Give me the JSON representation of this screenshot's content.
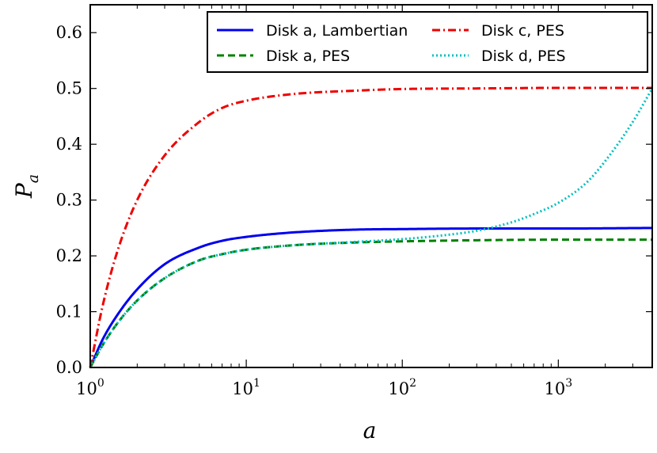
{
  "chart_data": {
    "type": "line",
    "title": "",
    "xlabel": "a",
    "ylabel_main": "P",
    "ylabel_sub": "a",
    "xscale": "log",
    "xlim": [
      1,
      4000
    ],
    "ylim": [
      0,
      0.65
    ],
    "x_ticks": [
      {
        "value": 1,
        "base": "10",
        "exp": "0"
      },
      {
        "value": 10,
        "base": "10",
        "exp": "1"
      },
      {
        "value": 100,
        "base": "10",
        "exp": "2"
      },
      {
        "value": 1000,
        "base": "10",
        "exp": "3"
      }
    ],
    "y_ticks": [
      {
        "value": 0.0,
        "label": "0.0"
      },
      {
        "value": 0.1,
        "label": "0.1"
      },
      {
        "value": 0.2,
        "label": "0.2"
      },
      {
        "value": 0.3,
        "label": "0.3"
      },
      {
        "value": 0.4,
        "label": "0.4"
      },
      {
        "value": 0.5,
        "label": "0.5"
      },
      {
        "value": 0.6,
        "label": "0.6"
      }
    ],
    "legend_position": "top-right",
    "series": [
      {
        "name": "Disk a, Lambertian",
        "color": "#0000ee",
        "dash": "solid",
        "x": [
          1,
          1.2,
          1.5,
          2,
          3,
          5,
          7,
          10,
          20,
          50,
          100,
          300,
          1000,
          4000
        ],
        "y": [
          0.0,
          0.05,
          0.095,
          0.14,
          0.185,
          0.215,
          0.227,
          0.234,
          0.242,
          0.247,
          0.248,
          0.249,
          0.249,
          0.25
        ]
      },
      {
        "name": "Disk a, PES",
        "color": "#008000",
        "dash": "dashed",
        "x": [
          1,
          1.2,
          1.5,
          2,
          3,
          5,
          7,
          10,
          20,
          50,
          100,
          300,
          1000,
          4000
        ],
        "y": [
          0.0,
          0.04,
          0.08,
          0.12,
          0.16,
          0.192,
          0.203,
          0.211,
          0.219,
          0.224,
          0.226,
          0.228,
          0.229,
          0.229
        ]
      },
      {
        "name": "Disk c, PES",
        "color": "#ee0000",
        "dash": "dashdot",
        "x": [
          1,
          1.2,
          1.5,
          2,
          3,
          5,
          7,
          10,
          20,
          50,
          100,
          300,
          1000,
          4000
        ],
        "y": [
          0.0,
          0.11,
          0.21,
          0.3,
          0.38,
          0.44,
          0.465,
          0.478,
          0.49,
          0.496,
          0.499,
          0.5,
          0.501,
          0.501
        ]
      },
      {
        "name": "Disk d, PES",
        "color": "#00bfbf",
        "dash": "dotted",
        "x": [
          1,
          1.2,
          1.5,
          2,
          3,
          5,
          7,
          10,
          20,
          50,
          100,
          200,
          300,
          500,
          700,
          1000,
          1500,
          2000,
          3000,
          4000
        ],
        "y": [
          0.0,
          0.04,
          0.08,
          0.12,
          0.16,
          0.192,
          0.203,
          0.211,
          0.219,
          0.225,
          0.23,
          0.238,
          0.245,
          0.26,
          0.275,
          0.295,
          0.33,
          0.37,
          0.44,
          0.5
        ]
      }
    ]
  }
}
